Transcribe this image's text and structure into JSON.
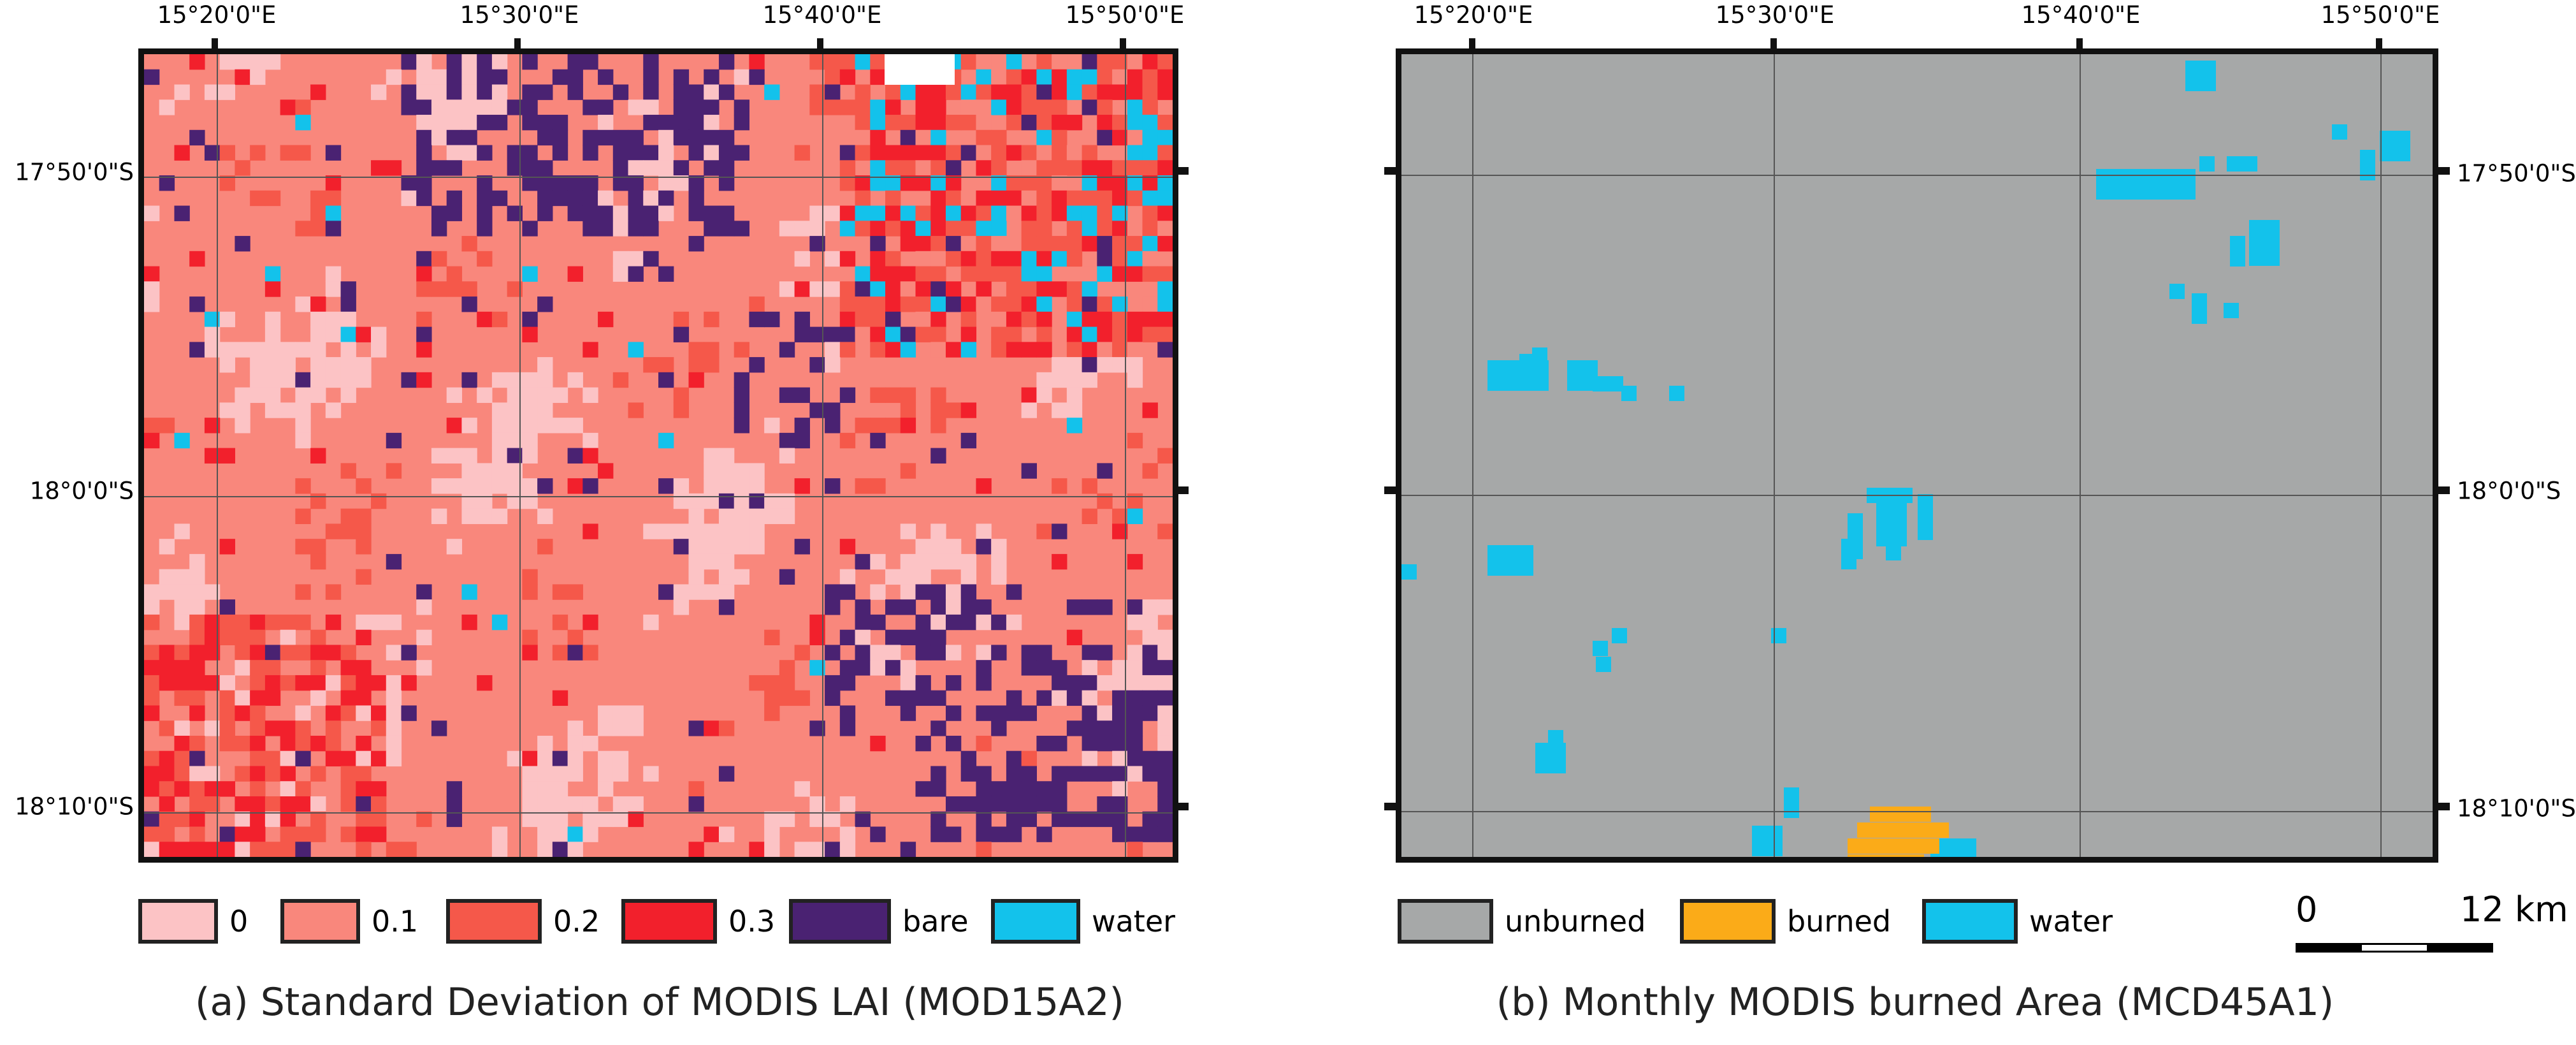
{
  "panel_a": {
    "caption": "(a) Standard Deviation of MODIS LAI (MOD15A2)",
    "longitude_labels": [
      "15°20'0\"E",
      "15°30'0\"E",
      "15°40'0\"E",
      "15°50'0\"E"
    ],
    "latitude_labels": [
      "17°50'0\"S",
      "18°0'0\"S",
      "18°10'0\"S"
    ],
    "legend": [
      {
        "label": "0",
        "color": "#fcc3c5"
      },
      {
        "label": "0.1",
        "color": "#f9877c"
      },
      {
        "label": "0.2",
        "color": "#f5584a"
      },
      {
        "label": "0.3",
        "color": "#f2202c"
      },
      {
        "label": "bare",
        "color": "#4a2272"
      },
      {
        "label": "water",
        "color": "#13c2eb"
      }
    ]
  },
  "panel_b": {
    "caption": "(b) Monthly MODIS burned Area (MCD45A1)",
    "longitude_labels": [
      "15°20'0\"E",
      "15°30'0\"E",
      "15°40'0\"E",
      "15°50'0\"E"
    ],
    "latitude_labels": [
      "17°50'0\"S",
      "18°0'0\"S",
      "18°10'0\"S"
    ],
    "legend": [
      {
        "label": "unburned",
        "color": "#a6a8a8"
      },
      {
        "label": "burned",
        "color": "#fbab18"
      },
      {
        "label": "water",
        "color": "#13c2eb"
      }
    ],
    "scale": {
      "start": "0",
      "end": "12 km"
    }
  }
}
